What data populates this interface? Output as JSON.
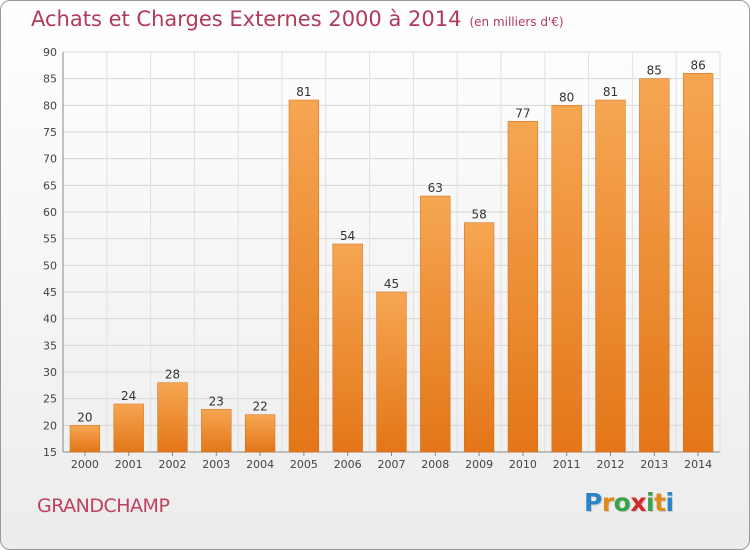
{
  "title": "Achats et Charges Externes 2000 à 2014",
  "subtitle": "(en milliers d'€)",
  "commune": "GRANDCHAMP",
  "logo": {
    "letters": [
      "P",
      "r",
      "o",
      "x",
      "i",
      "t",
      "i"
    ],
    "colors": [
      "#2a86c8",
      "#e08a1c",
      "#3aa24a",
      "#d6292a",
      "#3aa24a",
      "#e08a1c",
      "#2a86c8"
    ]
  },
  "chart_data": {
    "type": "bar",
    "categories": [
      "2000",
      "2001",
      "2002",
      "2003",
      "2004",
      "2005",
      "2006",
      "2007",
      "2008",
      "2009",
      "2010",
      "2011",
      "2012",
      "2013",
      "2014"
    ],
    "values": [
      20,
      24,
      28,
      23,
      22,
      81,
      54,
      45,
      63,
      58,
      77,
      80,
      81,
      85,
      86
    ],
    "ylim": [
      15,
      90
    ],
    "yticks": [
      15,
      20,
      25,
      30,
      35,
      40,
      45,
      50,
      55,
      60,
      65,
      70,
      75,
      80,
      85,
      90
    ],
    "grid": true,
    "bar_color": "#f08a2e"
  }
}
